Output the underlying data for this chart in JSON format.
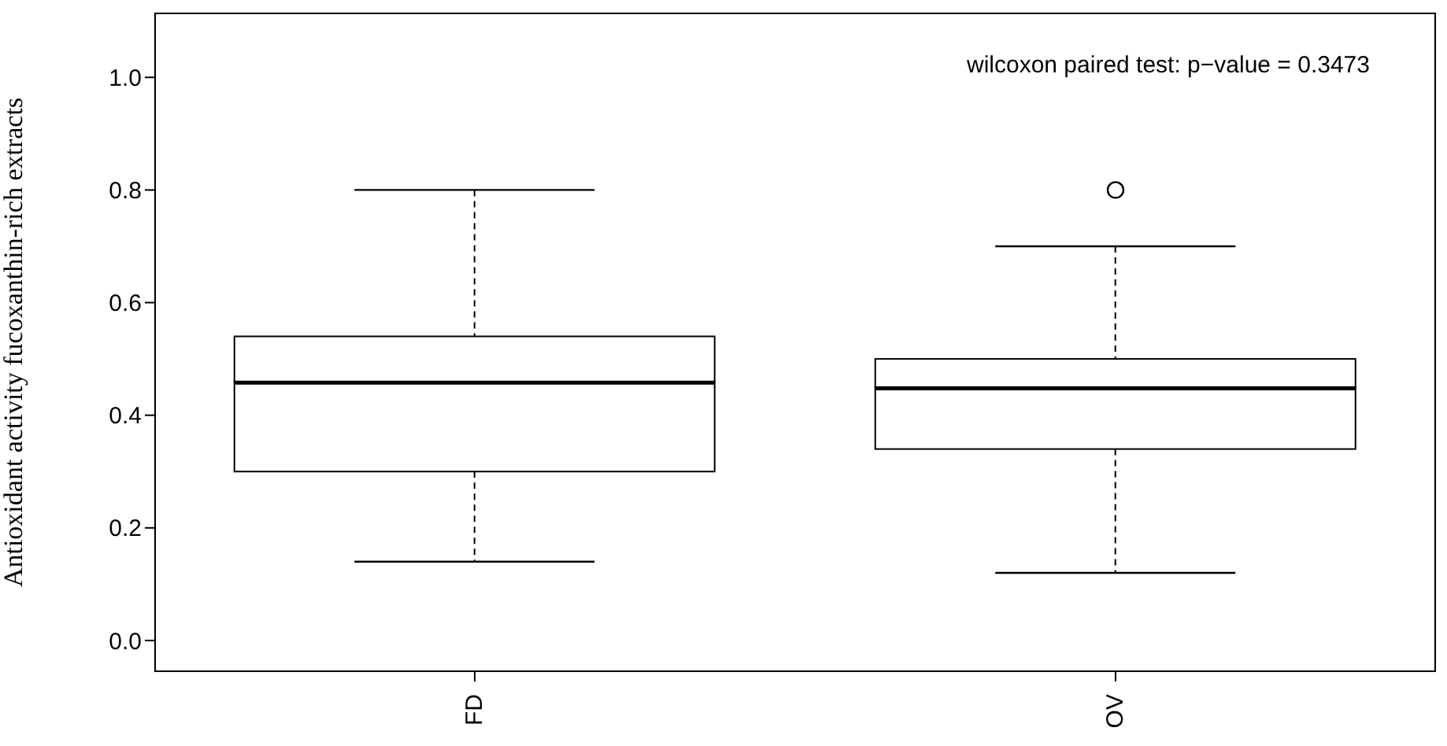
{
  "chart_data": {
    "type": "box",
    "ylabel": "Antioxidant activity fucoxanthin-rich extracts",
    "annotations": [
      "wilcoxon paired test: p−value = 0.3473"
    ],
    "categories": [
      "FD",
      "OV"
    ],
    "boxes": [
      {
        "low": 0.14,
        "q1": 0.3,
        "median": 0.46,
        "q3": 0.54,
        "high": 0.8
      },
      {
        "low": 0.12,
        "q1": 0.34,
        "median": 0.45,
        "q3": 0.5,
        "high": 0.7,
        "outliers": [
          0.8
        ]
      }
    ],
    "ylim": [
      -0.056,
      1.115
    ],
    "yticks": [
      {
        "value": 0,
        "label": "0.0"
      },
      {
        "value": 0.2,
        "label": "0.2"
      },
      {
        "value": 0.4,
        "label": "0.4"
      },
      {
        "value": 0.6,
        "label": "0.6"
      },
      {
        "value": 0.8,
        "label": "0.8"
      },
      {
        "value": 1,
        "label": "1.0"
      }
    ]
  }
}
